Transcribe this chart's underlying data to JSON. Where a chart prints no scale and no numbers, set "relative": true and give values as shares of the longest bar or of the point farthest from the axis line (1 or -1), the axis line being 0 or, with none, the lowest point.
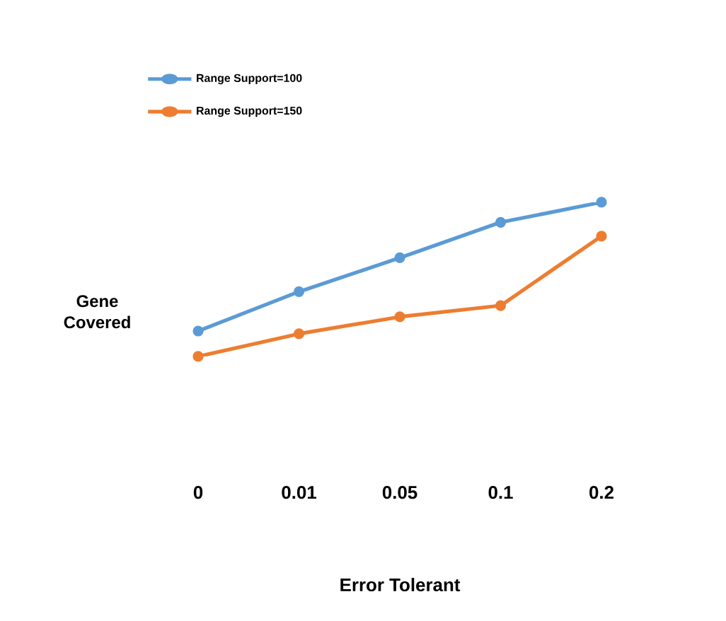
{
  "chart_data": {
    "type": "line",
    "xlabel": "Error Tolerant",
    "ylabel": "Gene Covered",
    "categories": [
      "0",
      "0.01",
      "0.05",
      "0.1",
      "0.2"
    ],
    "relative": true,
    "legend": "top left",
    "marker": "circle",
    "series": [
      {
        "name": "Range Support=100",
        "color": "#5b9bd5",
        "values": [
          0.165,
          0.42,
          0.64,
          0.87,
          1
        ]
      },
      {
        "name": "Range Support=150",
        "color": "#ed7d31",
        "values": [
          0,
          0.147,
          0.257,
          0.33,
          0.78
        ]
      }
    ]
  }
}
